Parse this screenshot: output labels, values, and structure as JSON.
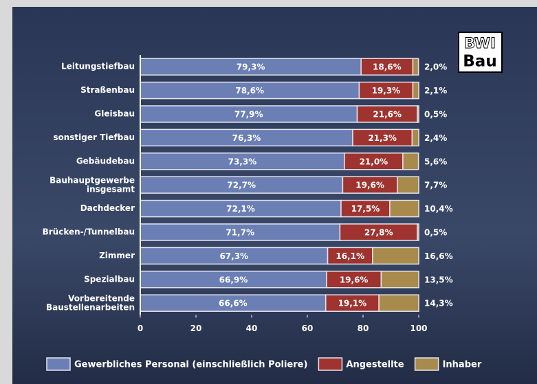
{
  "logo": {
    "line1": "BWI",
    "line2": "Bau"
  },
  "chart_data": {
    "type": "stacked-bar-horizontal",
    "categories": [
      "Leitungstiefbau",
      "Straßenbau",
      "Gleisbau",
      "sonstiger Tiefbau",
      "Gebäudebau",
      "Bauhauptgewerbe\ninsgesamt",
      "Dachdecker",
      "Brücken-/Tunnelbau",
      "Zimmer",
      "Spezialbau",
      "Vorbereitende\nBaustellenarbeiten"
    ],
    "series": [
      {
        "name": "Gewerbliches Personal (einschließlich Poliere)",
        "color": "#6b7fb5",
        "values": [
          79.3,
          78.6,
          77.9,
          76.3,
          73.3,
          72.7,
          72.1,
          71.7,
          67.3,
          66.9,
          66.6
        ],
        "value_labels": [
          "79,3%",
          "78,6%",
          "77,9%",
          "76,3%",
          "73,3%",
          "72,7%",
          "72,1%",
          "71,7%",
          "67,3%",
          "66,9%",
          "66,6%"
        ]
      },
      {
        "name": "Angestellte",
        "color": "#9e332f",
        "values": [
          18.6,
          19.3,
          21.6,
          21.3,
          21.0,
          19.6,
          17.5,
          27.8,
          16.1,
          19.6,
          19.1
        ],
        "value_labels": [
          "18,6%",
          "19,3%",
          "21,6%",
          "21,3%",
          "21,0%",
          "19,6%",
          "17,5%",
          "27,8%",
          "16,1%",
          "19,6%",
          "19,1%"
        ]
      },
      {
        "name": "Inhaber",
        "color": "#a88a4c",
        "values": [
          2.0,
          2.1,
          0.5,
          2.4,
          5.6,
          7.7,
          10.4,
          0.5,
          16.6,
          13.5,
          14.3
        ],
        "value_labels": [
          "2,0%",
          "2,1%",
          "0,5%",
          "2,4%",
          "5,6%",
          "7,7%",
          "10,4%",
          "0,5%",
          "16,6%",
          "13,5%",
          "14,3%"
        ]
      }
    ],
    "xlim": [
      0,
      100
    ],
    "xticks": [
      0,
      20,
      40,
      60,
      80,
      100
    ],
    "grid": false,
    "legend": "bottom"
  }
}
